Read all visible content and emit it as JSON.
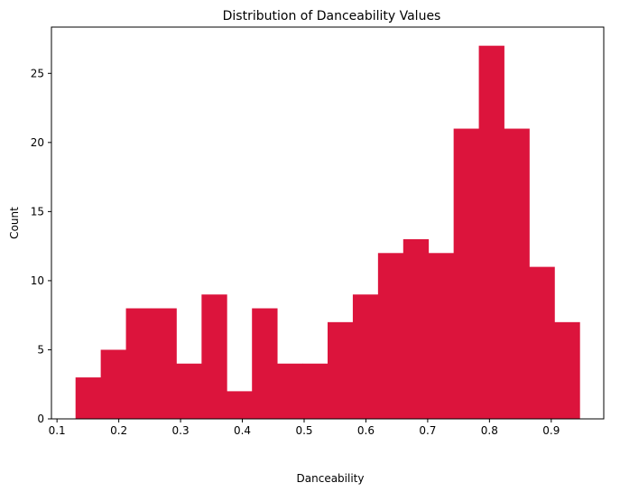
{
  "chart_data": {
    "type": "bar",
    "title": "Distribution of Danceability Values",
    "xlabel": "Danceability",
    "ylabel": "Count",
    "bin_edges": [
      0.13,
      0.1708,
      0.2116,
      0.2524,
      0.2932,
      0.334,
      0.3748,
      0.4156,
      0.4564,
      0.4972,
      0.538,
      0.5788,
      0.6196,
      0.6604,
      0.7012,
      0.742,
      0.7828,
      0.8236,
      0.8644,
      0.9052,
      0.946
    ],
    "values": [
      3,
      5,
      8,
      8,
      4,
      9,
      2,
      8,
      4,
      4,
      7,
      9,
      12,
      13,
      12,
      21,
      27,
      21,
      11,
      7
    ],
    "xlim": [
      0.091,
      0.985
    ],
    "ylim": [
      0,
      28.35
    ],
    "xticks": [
      0.1,
      0.2,
      0.3,
      0.4,
      0.5,
      0.6,
      0.7,
      0.8,
      0.9
    ],
    "xtick_labels": [
      "0.1",
      "0.2",
      "0.3",
      "0.4",
      "0.5",
      "0.6",
      "0.7",
      "0.8",
      "0.9"
    ],
    "yticks": [
      0,
      5,
      10,
      15,
      20,
      25
    ],
    "ytick_labels": [
      "0",
      "5",
      "10",
      "15",
      "20",
      "25"
    ],
    "bar_color": "#DC143C",
    "grid": false,
    "legend": false
  }
}
